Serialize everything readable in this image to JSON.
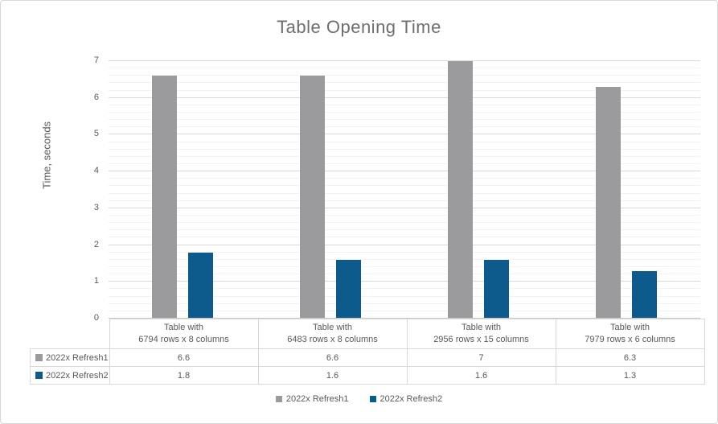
{
  "title": "Table Opening Time",
  "colors": {
    "series1": "#9b9b9d",
    "series2": "#0d5a8c",
    "grid_major": "#d9d9d9",
    "grid_minor": "#f2f2f2",
    "axis_line": "#c9c9c9",
    "text": "#595959",
    "title_text": "#6e6e6e",
    "frame_border": "#d7d7d7"
  },
  "chart_data": {
    "type": "bar",
    "title": "Table Opening Time",
    "xlabel": "",
    "ylabel": "Time, seconds",
    "ylim": [
      0,
      7
    ],
    "y_ticks": [
      0,
      1,
      2,
      3,
      4,
      5,
      6,
      7
    ],
    "minor_tick_step": 0.2,
    "grid": "horizontal major and minor gridlines",
    "legend_position": "bottom",
    "data_table_shown": true,
    "categories": [
      {
        "line1": "Table with",
        "line2": "6794 rows x 8 columns"
      },
      {
        "line1": "Table with",
        "line2": "6483 rows x 8 columns"
      },
      {
        "line1": "Table with",
        "line2": "2956 rows x 15 columns"
      },
      {
        "line1": "Table with",
        "line2": "7979 rows x 6 columns"
      }
    ],
    "series": [
      {
        "name": "2022x Refresh1",
        "color_key": "series1",
        "values": [
          6.6,
          6.6,
          7,
          6.3
        ]
      },
      {
        "name": "2022x Refresh2",
        "color_key": "series2",
        "values": [
          1.8,
          1.6,
          1.6,
          1.3
        ]
      }
    ]
  }
}
